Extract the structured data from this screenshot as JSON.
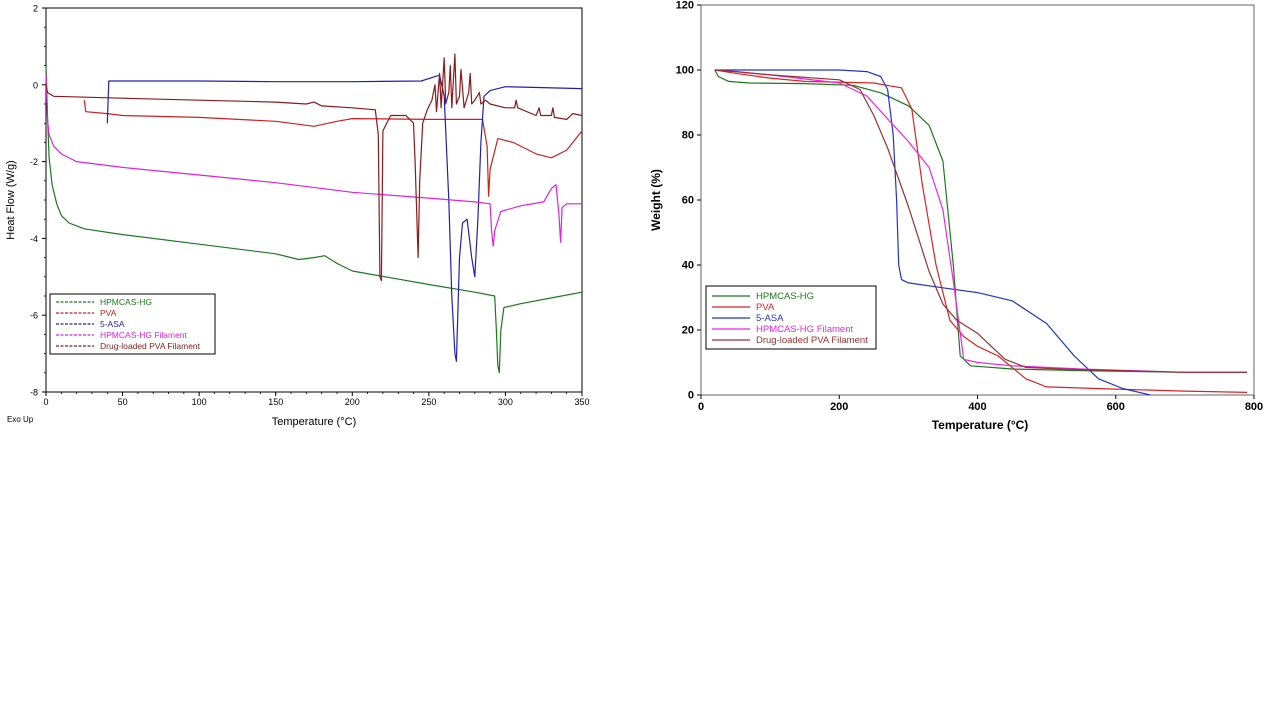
{
  "chart_data": [
    {
      "type": "line",
      "title": "",
      "xlabel": "Temperature (°C)",
      "ylabel": "Heat Flow (W/g)",
      "corner_note": "Exo Up",
      "xlim": [
        0,
        350
      ],
      "ylim": [
        -8,
        2
      ],
      "x_ticks": [
        0,
        50,
        100,
        150,
        200,
        250,
        300,
        350
      ],
      "y_ticks": [
        2,
        0,
        -2,
        -4,
        -6,
        -8
      ],
      "grid": false,
      "legend_position": "bottom-left",
      "series": [
        {
          "name": "HPMCAS-HG",
          "color": "#1a7a1a",
          "points": [
            [
              0,
              0.5
            ],
            [
              1,
              -0.8
            ],
            [
              2,
              -1.9
            ],
            [
              4,
              -2.6
            ],
            [
              7,
              -3.1
            ],
            [
              10,
              -3.4
            ],
            [
              15,
              -3.6
            ],
            [
              25,
              -3.75
            ],
            [
              50,
              -3.9
            ],
            [
              100,
              -4.15
            ],
            [
              150,
              -4.4
            ],
            [
              165,
              -4.55
            ],
            [
              175,
              -4.5
            ],
            [
              182,
              -4.45
            ],
            [
              190,
              -4.65
            ],
            [
              200,
              -4.85
            ],
            [
              250,
              -5.2
            ],
            [
              280,
              -5.4
            ],
            [
              293,
              -5.5
            ],
            [
              294,
              -6.3
            ],
            [
              295,
              -7.3
            ],
            [
              296,
              -7.5
            ],
            [
              297,
              -6.4
            ],
            [
              299,
              -5.8
            ],
            [
              310,
              -5.7
            ],
            [
              330,
              -5.55
            ],
            [
              350,
              -5.4
            ]
          ]
        },
        {
          "name": "PVA",
          "color": "#cc2020",
          "points": [
            [
              25,
              -0.4
            ],
            [
              26,
              -0.7
            ],
            [
              40,
              -0.75
            ],
            [
              50,
              -0.8
            ],
            [
              100,
              -0.85
            ],
            [
              150,
              -0.95
            ],
            [
              175,
              -1.08
            ],
            [
              190,
              -0.95
            ],
            [
              200,
              -0.88
            ],
            [
              250,
              -0.9
            ],
            [
              285,
              -0.9
            ],
            [
              288,
              -1.6
            ],
            [
              289,
              -2.9
            ],
            [
              290,
              -2.2
            ],
            [
              295,
              -1.4
            ],
            [
              305,
              -1.5
            ],
            [
              320,
              -1.8
            ],
            [
              330,
              -1.9
            ],
            [
              340,
              -1.7
            ],
            [
              350,
              -1.2
            ]
          ]
        },
        {
          "name": "5-ASA",
          "color": "#2020b0",
          "points": [
            [
              40,
              -1.0
            ],
            [
              41,
              0.1
            ],
            [
              100,
              0.1
            ],
            [
              150,
              0.08
            ],
            [
              200,
              0.08
            ],
            [
              245,
              0.1
            ],
            [
              253,
              0.2
            ],
            [
              257,
              0.25
            ],
            [
              260,
              -0.3
            ],
            [
              263,
              -3.0
            ],
            [
              265,
              -5.5
            ],
            [
              267,
              -7.0
            ],
            [
              268,
              -7.2
            ],
            [
              270,
              -4.5
            ],
            [
              272,
              -3.6
            ],
            [
              275,
              -3.5
            ],
            [
              278,
              -4.5
            ],
            [
              280,
              -5.0
            ],
            [
              282,
              -3.5
            ],
            [
              284,
              -1.5
            ],
            [
              286,
              -0.3
            ],
            [
              290,
              -0.15
            ],
            [
              300,
              -0.05
            ],
            [
              350,
              -0.1
            ]
          ]
        },
        {
          "name": "HPMCAS-HG Filament",
          "color": "#dd22dd",
          "points": [
            [
              0,
              0.3
            ],
            [
              1,
              -0.9
            ],
            [
              2,
              -1.3
            ],
            [
              5,
              -1.6
            ],
            [
              10,
              -1.8
            ],
            [
              20,
              -2.0
            ],
            [
              50,
              -2.15
            ],
            [
              100,
              -2.35
            ],
            [
              150,
              -2.55
            ],
            [
              200,
              -2.8
            ],
            [
              250,
              -2.95
            ],
            [
              280,
              -3.05
            ],
            [
              290,
              -3.1
            ],
            [
              291,
              -3.8
            ],
            [
              292,
              -4.2
            ],
            [
              293,
              -3.8
            ],
            [
              297,
              -3.3
            ],
            [
              310,
              -3.15
            ],
            [
              325,
              -3.05
            ],
            [
              330,
              -2.7
            ],
            [
              333,
              -2.6
            ],
            [
              335,
              -3.4
            ],
            [
              336,
              -4.1
            ],
            [
              337,
              -3.2
            ],
            [
              340,
              -3.1
            ],
            [
              350,
              -3.1
            ]
          ]
        },
        {
          "name": "Drug-loaded PVA Filament",
          "color": "#8b1a1a",
          "points": [
            [
              0,
              0.0
            ],
            [
              1,
              -0.2
            ],
            [
              5,
              -0.3
            ],
            [
              50,
              -0.35
            ],
            [
              100,
              -0.4
            ],
            [
              150,
              -0.45
            ],
            [
              170,
              -0.5
            ],
            [
              175,
              -0.45
            ],
            [
              180,
              -0.55
            ],
            [
              200,
              -0.6
            ],
            [
              215,
              -0.65
            ],
            [
              217,
              -1.3
            ],
            [
              218,
              -5.0
            ],
            [
              219,
              -5.1
            ],
            [
              220,
              -1.2
            ],
            [
              225,
              -0.8
            ],
            [
              235,
              -0.8
            ],
            [
              240,
              -1.0
            ],
            [
              241,
              -2.0
            ],
            [
              243,
              -4.5
            ],
            [
              244,
              -2.5
            ],
            [
              246,
              -1.0
            ],
            [
              249,
              -0.65
            ],
            [
              252,
              -0.4
            ],
            [
              254,
              0.0
            ],
            [
              255,
              -0.7
            ],
            [
              257,
              0.3
            ],
            [
              258,
              -0.6
            ],
            [
              260,
              0.7
            ],
            [
              261,
              -0.5
            ],
            [
              263,
              -0.2
            ],
            [
              264,
              0.5
            ],
            [
              265,
              -0.6
            ],
            [
              267,
              0.8
            ],
            [
              268,
              -0.5
            ],
            [
              270,
              -0.3
            ],
            [
              271,
              0.4
            ],
            [
              273,
              -0.6
            ],
            [
              276,
              -0.2
            ],
            [
              277,
              0.3
            ],
            [
              278,
              -0.5
            ],
            [
              280,
              -0.4
            ],
            [
              283,
              -0.2
            ],
            [
              284,
              -0.5
            ],
            [
              287,
              -0.4
            ],
            [
              290,
              -0.5
            ],
            [
              300,
              -0.6
            ],
            [
              306,
              -0.6
            ],
            [
              307,
              -0.4
            ],
            [
              308,
              -0.6
            ],
            [
              320,
              -0.8
            ],
            [
              322,
              -0.6
            ],
            [
              323,
              -0.8
            ],
            [
              330,
              -0.8
            ],
            [
              331,
              -0.6
            ],
            [
              332,
              -0.85
            ],
            [
              340,
              -0.9
            ],
            [
              344,
              -0.75
            ],
            [
              350,
              -0.8
            ]
          ]
        }
      ]
    },
    {
      "type": "line",
      "title": "",
      "xlabel": "Temperature (°C)",
      "ylabel": "Weight (%)",
      "xlim": [
        0,
        800
      ],
      "ylim": [
        0,
        120
      ],
      "x_ticks": [
        0,
        200,
        400,
        600,
        800
      ],
      "y_ticks": [
        0,
        20,
        40,
        60,
        80,
        100,
        120
      ],
      "grid": false,
      "legend_position": "bottom-left",
      "series": [
        {
          "name": "HPMCAS-HG",
          "color": "#1a7a1a",
          "points": [
            [
              20,
              100
            ],
            [
              25,
              98
            ],
            [
              40,
              96.5
            ],
            [
              70,
              96
            ],
            [
              150,
              95.8
            ],
            [
              220,
              95.3
            ],
            [
              260,
              93
            ],
            [
              300,
              89
            ],
            [
              330,
              83
            ],
            [
              350,
              72
            ],
            [
              365,
              40
            ],
            [
              375,
              12
            ],
            [
              390,
              9
            ],
            [
              450,
              8
            ],
            [
              550,
              7.5
            ],
            [
              700,
              7
            ],
            [
              790,
              7
            ]
          ]
        },
        {
          "name": "PVA",
          "color": "#dd2222",
          "points": [
            [
              20,
              100
            ],
            [
              50,
              99
            ],
            [
              100,
              97.5
            ],
            [
              150,
              96.5
            ],
            [
              250,
              96
            ],
            [
              290,
              94.5
            ],
            [
              305,
              88
            ],
            [
              320,
              65
            ],
            [
              340,
              40
            ],
            [
              360,
              23
            ],
            [
              380,
              18
            ],
            [
              400,
              15
            ],
            [
              430,
              12
            ],
            [
              470,
              5
            ],
            [
              500,
              2.5
            ],
            [
              600,
              1.8
            ],
            [
              700,
              1.2
            ],
            [
              790,
              0.8
            ]
          ]
        },
        {
          "name": "5-ASA",
          "color": "#2233cc",
          "points": [
            [
              20,
              100
            ],
            [
              100,
              100
            ],
            [
              200,
              100
            ],
            [
              240,
              99.5
            ],
            [
              260,
              98
            ],
            [
              270,
              94
            ],
            [
              278,
              80
            ],
            [
              283,
              60
            ],
            [
              286,
              40
            ],
            [
              290,
              35.5
            ],
            [
              300,
              34.5
            ],
            [
              350,
              33
            ],
            [
              400,
              31.5
            ],
            [
              450,
              29
            ],
            [
              500,
              22
            ],
            [
              540,
              12
            ],
            [
              575,
              5
            ],
            [
              610,
              2
            ],
            [
              650,
              0
            ]
          ]
        },
        {
          "name": "HPMCAS-HG Filament",
          "color": "#ee22ee",
          "points": [
            [
              20,
              100
            ],
            [
              50,
              99.5
            ],
            [
              100,
              98.5
            ],
            [
              200,
              96
            ],
            [
              240,
              92
            ],
            [
              270,
              85
            ],
            [
              300,
              78
            ],
            [
              330,
              70
            ],
            [
              350,
              57
            ],
            [
              365,
              35
            ],
            [
              380,
              11
            ],
            [
              400,
              10
            ],
            [
              450,
              9
            ],
            [
              550,
              8
            ],
            [
              700,
              7
            ],
            [
              790,
              7
            ]
          ]
        },
        {
          "name": "Drug-loaded PVA Filament",
          "color": "#9b3030",
          "points": [
            [
              20,
              100
            ],
            [
              50,
              99.5
            ],
            [
              100,
              98.5
            ],
            [
              200,
              97
            ],
            [
              230,
              94
            ],
            [
              250,
              86
            ],
            [
              270,
              76
            ],
            [
              300,
              58
            ],
            [
              330,
              38
            ],
            [
              350,
              28
            ],
            [
              370,
              23
            ],
            [
              400,
              19
            ],
            [
              420,
              15
            ],
            [
              440,
              11
            ],
            [
              470,
              8.5
            ],
            [
              520,
              8
            ],
            [
              600,
              7.5
            ],
            [
              700,
              7
            ],
            [
              790,
              7
            ]
          ]
        }
      ]
    }
  ]
}
